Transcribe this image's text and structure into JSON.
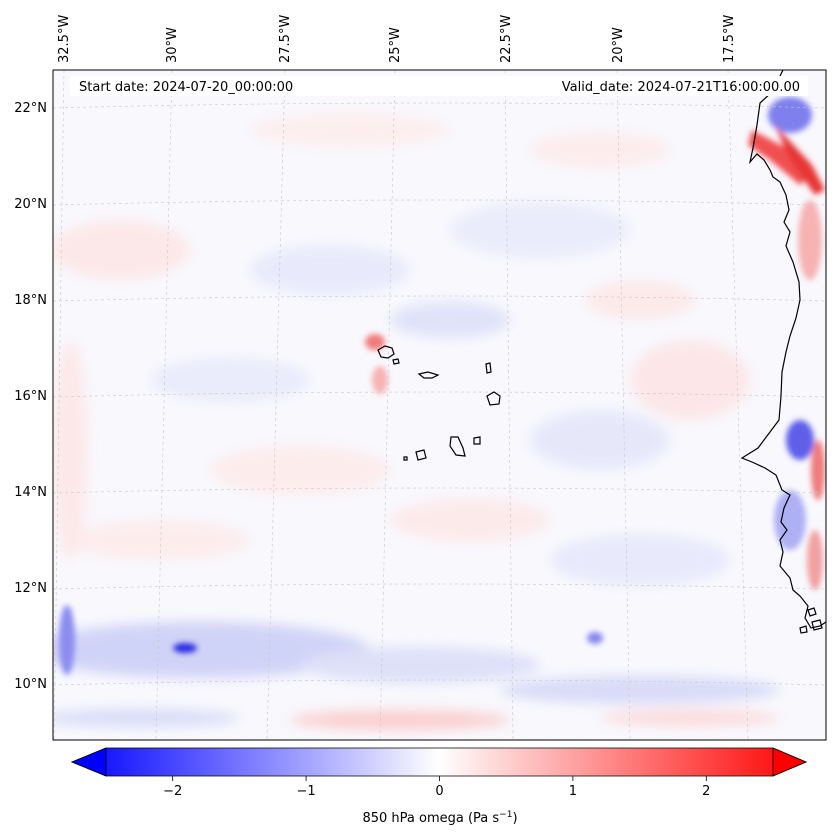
{
  "header": {
    "start_date": "Start date: 2024-07-20_00:00:00",
    "valid_date": "Valid_date: 2024-07-21T16:00:00.00"
  },
  "longitude_labels": [
    "32.5°W",
    "30°W",
    "27.5°W",
    "25°W",
    "22.5°W",
    "20°W",
    "17.5°W"
  ],
  "latitude_labels": [
    "22°N",
    "20°N",
    "18°N",
    "16°N",
    "14°N",
    "12°N",
    "10°N"
  ],
  "colorbar": {
    "ticks": [
      "−2",
      "−1",
      "0",
      "1",
      "2"
    ],
    "tick_values": [
      -2,
      -1,
      0,
      1,
      2
    ],
    "range": [
      -2.5,
      2.5
    ],
    "label": "850 hPa omega (Pa s",
    "label_sup": "−1",
    "label_end": ")",
    "colormap": "bwr",
    "neg_color": "#0000ff",
    "zero_color": "#ffffff",
    "pos_color": "#ff0000"
  },
  "map": {
    "background_color": "#f8f8fd",
    "coastline_color": "#000000",
    "gridline_color": "#c8c8c8"
  }
}
